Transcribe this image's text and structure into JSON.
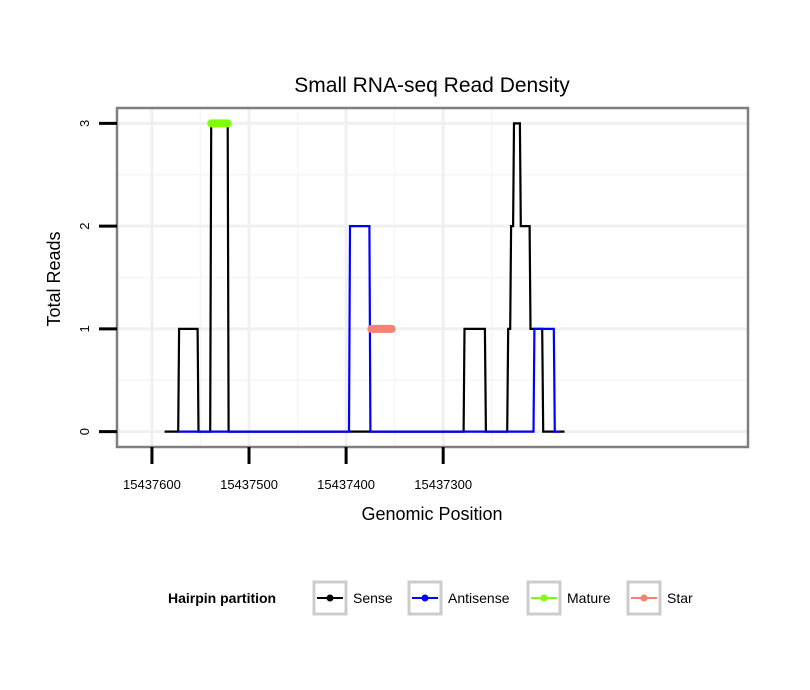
{
  "chart_data": {
    "type": "line",
    "title": "Small RNA-seq Read Density",
    "xlabel": "Genomic Position",
    "ylabel": "Total Reads",
    "x_reversed": true,
    "xlim": [
      15437636,
      15436986
    ],
    "ylim": [
      -0.15,
      3.15
    ],
    "x_ticks": [
      15437600,
      15437500,
      15437400,
      15437300
    ],
    "x_tick_labels": [
      "15437600",
      "15437500",
      "15437400",
      "15437300"
    ],
    "y_ticks": [
      0,
      1,
      2,
      3
    ],
    "y_tick_labels": [
      "0",
      "1",
      "2",
      "3"
    ],
    "grid": true,
    "legend": {
      "title": "Hairpin partition",
      "position": "bottom",
      "entries": [
        {
          "name": "Sense",
          "color": "#000000"
        },
        {
          "name": "Antisense",
          "color": "#0000ff"
        },
        {
          "name": "Mature",
          "color": "#7fff00"
        },
        {
          "name": "Star",
          "color": "#fa8072"
        }
      ]
    },
    "series": [
      {
        "name": "Sense",
        "color": "#000000",
        "x": [
          15437587,
          15437573,
          15437572,
          15437553,
          15437552,
          15437540,
          15437539,
          15437522,
          15437521,
          15437279,
          15437278,
          15437257,
          15437256,
          15437234,
          15437233,
          15437231,
          15437230,
          15437228,
          15437227,
          15437221,
          15437220,
          15437211,
          15437210,
          15437198,
          15437197,
          15437192,
          15437191,
          15437175
        ],
        "y": [
          0,
          0,
          1,
          1,
          0,
          0,
          3,
          3,
          0,
          0,
          1,
          1,
          0,
          0,
          1,
          1,
          2,
          2,
          3,
          3,
          2,
          2,
          1,
          1,
          0,
          0,
          0,
          0
        ]
      },
      {
        "name": "Antisense",
        "color": "#0000ff",
        "x": [
          15437573,
          15437397,
          15437396,
          15437376,
          15437375,
          15437290,
          15437289,
          15437207,
          15437206,
          15437186,
          15437185,
          15437180
        ],
        "y": [
          0,
          0,
          2,
          2,
          0,
          0,
          0,
          0,
          1,
          1,
          0,
          0
        ]
      },
      {
        "name": "Mature",
        "color": "#7fff00",
        "x": [
          15437539,
          15437522
        ],
        "y": [
          3,
          3
        ]
      },
      {
        "name": "Star",
        "color": "#fa8072",
        "x": [
          15437374,
          15437353
        ],
        "y": [
          1,
          1
        ]
      }
    ]
  }
}
